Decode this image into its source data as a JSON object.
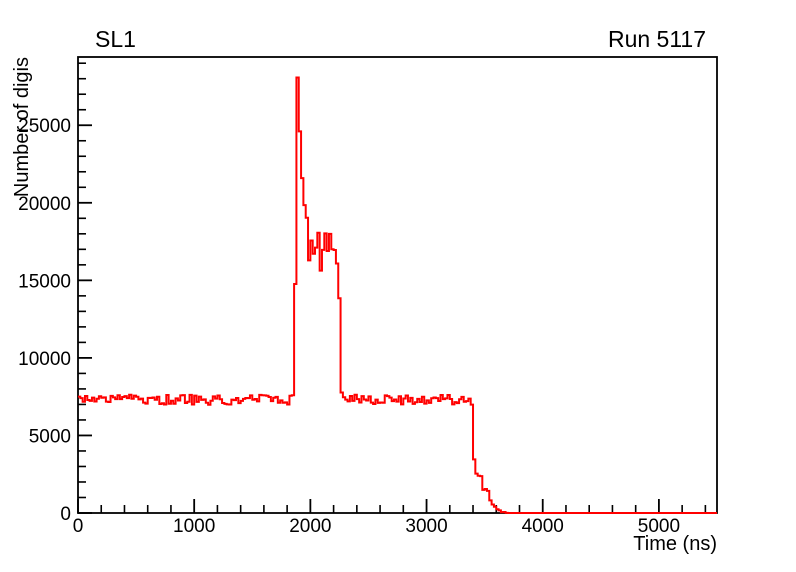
{
  "page": {
    "background": "#ffffff"
  },
  "header": {
    "title": "SL1",
    "run_label": "Run 5117"
  },
  "chart_data": {
    "type": "line",
    "style": "histogram-step",
    "title": "SL1",
    "right_label": "Run 5117",
    "xlabel": "Time (ns)",
    "ylabel": "Number of digis",
    "xlim": [
      0,
      5500
    ],
    "ylim": [
      0,
      29400
    ],
    "x_major_ticks": [
      0,
      1000,
      2000,
      3000,
      4000,
      5000
    ],
    "x_tick_labels": [
      "0",
      "1000",
      "2000",
      "3000",
      "4000",
      "5000"
    ],
    "x_minor_step": 200,
    "y_major_ticks": [
      0,
      5000,
      10000,
      15000,
      20000,
      25000
    ],
    "y_tick_labels": [
      "0",
      "5000",
      "10000",
      "15000",
      "20000",
      "25000"
    ],
    "y_minor_step": 1000,
    "grid": false,
    "legend": "none",
    "axis_color": "#000000",
    "line_color": "#ff0000",
    "series": [
      {
        "name": "number-of-digis-vs-time",
        "bin_width_ns": 20,
        "noise_seed": 20240517,
        "peak_value": 28080,
        "baseline_value": 7300,
        "envelope_t_mean_noise": [
          [
            0,
            7300,
            330
          ],
          [
            1862,
            7300,
            330
          ],
          [
            1866,
            10000,
            500
          ],
          [
            1874,
            19800,
            400
          ],
          [
            1880,
            20400,
            700
          ],
          [
            1884,
            21200,
            300
          ],
          [
            1888,
            24500,
            0
          ],
          [
            1890,
            28080,
            0
          ],
          [
            1892,
            25800,
            0
          ],
          [
            1896,
            24600,
            200
          ],
          [
            1904,
            25300,
            200
          ],
          [
            1916,
            23300,
            600
          ],
          [
            1928,
            21800,
            800
          ],
          [
            1940,
            19300,
            800
          ],
          [
            1950,
            19900,
            800
          ],
          [
            1962,
            20200,
            700
          ],
          [
            1972,
            18800,
            900
          ],
          [
            1984,
            17400,
            1200
          ],
          [
            1998,
            16900,
            1500
          ],
          [
            2150,
            16700,
            1500
          ],
          [
            2235,
            16900,
            1700
          ],
          [
            2248,
            15800,
            1500
          ],
          [
            2254,
            13000,
            800
          ],
          [
            2266,
            8900,
            500
          ],
          [
            2274,
            7350,
            330
          ],
          [
            3392,
            7300,
            330
          ],
          [
            3402,
            5800,
            500
          ],
          [
            3408,
            3620,
            150
          ],
          [
            3420,
            2580,
            130
          ],
          [
            3478,
            2450,
            120
          ],
          [
            3490,
            1560,
            90
          ],
          [
            3540,
            1450,
            80
          ],
          [
            3552,
            680,
            60
          ],
          [
            3580,
            430,
            50
          ],
          [
            3605,
            250,
            40
          ],
          [
            3645,
            80,
            25
          ],
          [
            3695,
            10,
            8
          ],
          [
            3715,
            0,
            0
          ],
          [
            5500,
            0,
            0
          ]
        ]
      }
    ]
  }
}
